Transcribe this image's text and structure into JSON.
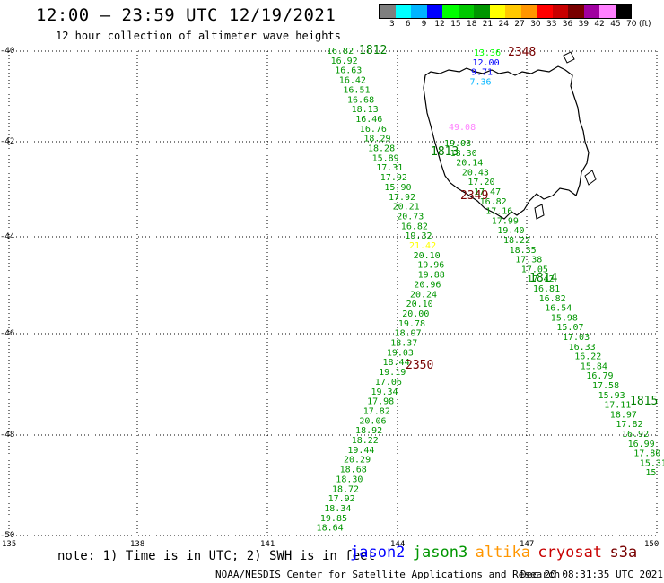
{
  "header": {
    "title": "12:00 — 23:59 UTC 12/19/2021",
    "subtitle": "12 hour collection of altimeter wave heights"
  },
  "colorbar": {
    "unit": "(ft)",
    "ticks": [
      "3",
      "6",
      "9",
      "12",
      "15",
      "18",
      "21",
      "24",
      "27",
      "30",
      "33",
      "36",
      "39",
      "42",
      "45",
      "70"
    ],
    "colors": [
      "#7f7f7f",
      "#00ffff",
      "#00b4ff",
      "#0000ff",
      "#00ff00",
      "#00c800",
      "#009600",
      "#ffff00",
      "#ffc800",
      "#ff9600",
      "#ff0000",
      "#c80000",
      "#780000",
      "#a000a0",
      "#ff80ff",
      "#000000"
    ]
  },
  "axes": {
    "lat_labels": [
      "-40",
      "-42",
      "-44",
      "-46",
      "-48",
      "-50"
    ],
    "lon_labels": [
      "135",
      "138",
      "141",
      "144",
      "147",
      "150"
    ]
  },
  "tracks": [
    {
      "time": "1812",
      "time_color": "#008000",
      "points": [
        [
          "16.82",
          "#009600"
        ],
        [
          "16.92",
          "#009600"
        ],
        [
          "16.63",
          "#009600"
        ],
        [
          "16.42",
          "#009600"
        ],
        [
          "16.51",
          "#009600"
        ],
        [
          "16.68",
          "#009600"
        ],
        [
          "18.13",
          "#009600"
        ],
        [
          "16.46",
          "#009600"
        ],
        [
          "16.76",
          "#009600"
        ],
        [
          "18.29",
          "#009600"
        ],
        [
          "18.28",
          "#009600"
        ],
        [
          "15.89",
          "#009600"
        ],
        [
          "17.31",
          "#009600"
        ],
        [
          "17.92",
          "#009600"
        ],
        [
          "15.90",
          "#009600"
        ],
        [
          "17.92",
          "#009600"
        ],
        [
          "20.21",
          "#009600"
        ],
        [
          "20.73",
          "#009600"
        ],
        [
          "16.82",
          "#009600"
        ],
        [
          "19.32",
          "#009600"
        ],
        [
          "21.42",
          "#ffff00"
        ],
        [
          "20.10",
          "#009600"
        ],
        [
          "19.96",
          "#009600"
        ],
        [
          "19.88",
          "#009600"
        ],
        [
          "20.96",
          "#009600"
        ],
        [
          "20.24",
          "#009600"
        ],
        [
          "20.10",
          "#009600"
        ],
        [
          "20.00",
          "#009600"
        ],
        [
          "19.78",
          "#009600"
        ],
        [
          "18.97",
          "#009600"
        ],
        [
          "18.37",
          "#009600"
        ],
        [
          "19.03",
          "#009600"
        ],
        [
          "18.44",
          "#009600"
        ],
        [
          "19.19",
          "#009600"
        ],
        [
          "17.06",
          "#009600"
        ],
        [
          "19.34",
          "#009600"
        ],
        [
          "17.98",
          "#009600"
        ],
        [
          "17.82",
          "#009600"
        ],
        [
          "20.06",
          "#009600"
        ],
        [
          "18.92",
          "#009600"
        ],
        [
          "18.22",
          "#009600"
        ],
        [
          "19.44",
          "#009600"
        ],
        [
          "20.29",
          "#009600"
        ],
        [
          "18.68",
          "#009600"
        ],
        [
          "18.30",
          "#009600"
        ],
        [
          "18.72",
          "#009600"
        ],
        [
          "17.92",
          "#009600"
        ],
        [
          "18.34",
          "#009600"
        ],
        [
          "19.85",
          "#009600"
        ],
        [
          "18.64",
          "#009600"
        ]
      ]
    },
    {
      "time": "1813",
      "time_color": "#008000",
      "points": []
    },
    {
      "time": "1814",
      "time_color": "#008000",
      "points": [
        [
          "19.08",
          "#009600"
        ],
        [
          "18.30",
          "#009600"
        ],
        [
          "20.14",
          "#009600"
        ],
        [
          "20.43",
          "#009600"
        ],
        [
          "17.20",
          "#009600"
        ],
        [
          "17.47",
          "#009600"
        ],
        [
          "16.82",
          "#009600"
        ],
        [
          "17.16",
          "#009600"
        ],
        [
          "17.99",
          "#009600"
        ],
        [
          "19.40",
          "#009600"
        ],
        [
          "18.22",
          "#009600"
        ],
        [
          "18.35",
          "#009600"
        ],
        [
          "17.38",
          "#009600"
        ],
        [
          "17.05",
          "#009600"
        ],
        [
          "17.42",
          "#009600"
        ],
        [
          "16.81",
          "#009600"
        ],
        [
          "16.82",
          "#009600"
        ],
        [
          "16.54",
          "#009600"
        ],
        [
          "15.98",
          "#009600"
        ],
        [
          "15.07",
          "#009600"
        ],
        [
          "17.03",
          "#009600"
        ],
        [
          "16.33",
          "#009600"
        ],
        [
          "16.22",
          "#009600"
        ],
        [
          "15.84",
          "#009600"
        ],
        [
          "16.79",
          "#009600"
        ],
        [
          "17.58",
          "#009600"
        ],
        [
          "15.93",
          "#009600"
        ],
        [
          "17.11",
          "#009600"
        ],
        [
          "18.97",
          "#009600"
        ],
        [
          "17.82",
          "#009600"
        ],
        [
          "16.92",
          "#009600"
        ],
        [
          "16.99",
          "#009600"
        ],
        [
          "17.80",
          "#009600"
        ],
        [
          "15.31",
          "#009600"
        ],
        [
          "15",
          "#009600"
        ]
      ]
    },
    {
      "time": "1815",
      "time_color": "#008000",
      "points": []
    },
    {
      "time": "2348",
      "time_color": "#780000",
      "points": [
        [
          "13.36",
          "#00ff00"
        ],
        [
          "12.00",
          "#0000ff"
        ],
        [
          "9.71",
          "#0000ff"
        ],
        [
          "7.36",
          "#00b4ff"
        ]
      ]
    },
    {
      "time": "2349",
      "time_color": "#780000",
      "points": [
        [
          "49.08",
          "#ff80ff"
        ]
      ]
    },
    {
      "time": "2350",
      "time_color": "#780000",
      "points": []
    }
  ],
  "footer": {
    "note": "note: 1) Time is in UTC; 2) SWH is in feet",
    "missions": [
      {
        "name": "jason2",
        "color": "#0000ff"
      },
      {
        "name": "jason3",
        "color": "#009600"
      },
      {
        "name": "altika",
        "color": "#ff9600"
      },
      {
        "name": "cryosat",
        "color": "#c80000"
      },
      {
        "name": "s3a",
        "color": "#780000"
      }
    ],
    "credit": "NOAA/NESDIS Center for Satellite Applications and Research",
    "generated": "Dec 20 08:31:35 UTC 2021"
  }
}
